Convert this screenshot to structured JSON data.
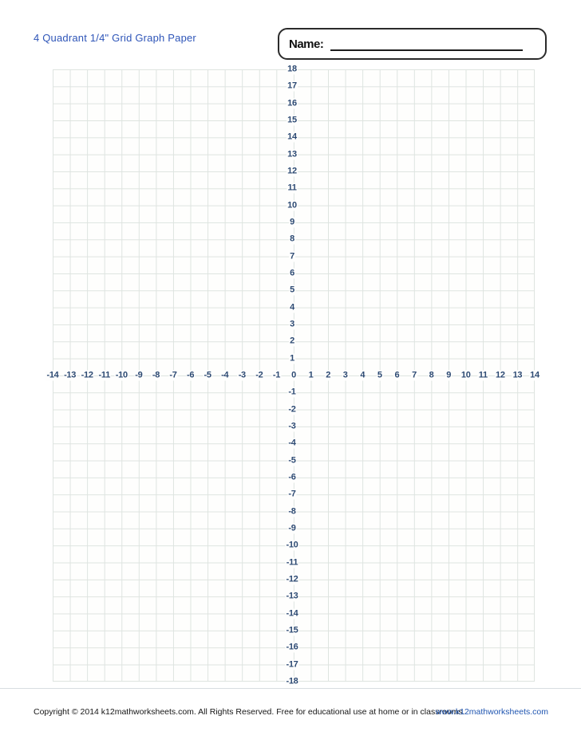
{
  "page": {
    "title": "4 Quadrant 1/4\" Grid Graph Paper",
    "name_label": "Name:"
  },
  "graph": {
    "type": "grid-paper",
    "x_range": [
      -14,
      14
    ],
    "y_range": [
      -18,
      18
    ],
    "x_ticks": [
      -14,
      -13,
      -12,
      -11,
      -10,
      -9,
      -8,
      -7,
      -6,
      -5,
      -4,
      -3,
      -2,
      -1,
      0,
      1,
      2,
      3,
      4,
      5,
      6,
      7,
      8,
      9,
      10,
      11,
      12,
      13,
      14
    ],
    "y_ticks": [
      18,
      17,
      16,
      15,
      14,
      13,
      12,
      11,
      10,
      9,
      8,
      7,
      6,
      5,
      4,
      3,
      2,
      1,
      -1,
      -2,
      -3,
      -4,
      -5,
      -6,
      -7,
      -8,
      -9,
      -10,
      -11,
      -12,
      -13,
      -14,
      -15,
      -16,
      -17,
      -18
    ]
  },
  "footer": {
    "copyright": "Copyright © 2014  k12mathworksheets.com. All Rights Reserved. Free for educational use at home or in classrooms.",
    "website": "www.k12mathworksheets.com"
  },
  "colors": {
    "title_blue": "#2e55b8",
    "link_blue": "#1f55b0",
    "axis_navy": "#2d4a73",
    "grid_line": "#dee4e0"
  }
}
